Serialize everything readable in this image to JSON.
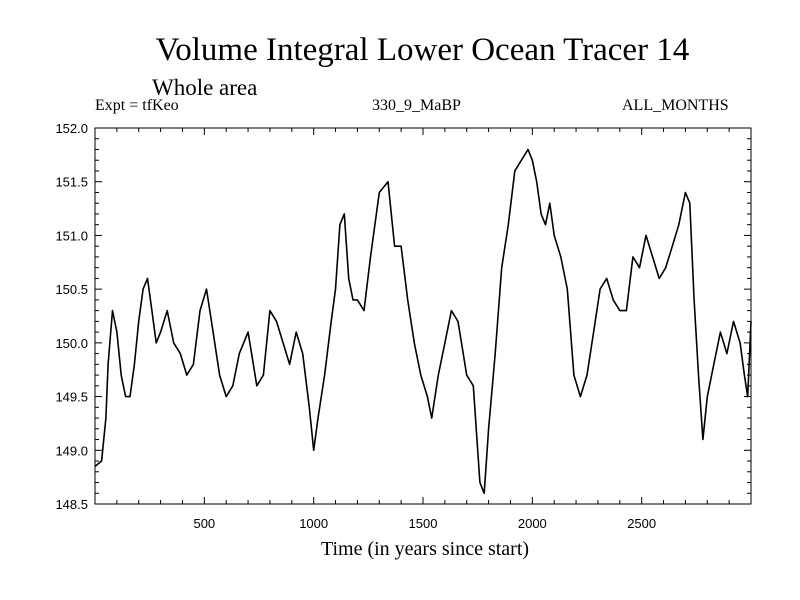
{
  "header": {
    "title": "Volume Integral Lower Ocean Tracer 14",
    "subtitle": "Whole area",
    "expt": "Expt = tfKeo",
    "run_id": "330_9_MaBP",
    "months": "ALL_MONTHS"
  },
  "chart_data": {
    "type": "line",
    "title": "Volume Integral Lower Ocean Tracer 14",
    "xlabel": "Time (in years since start)",
    "ylabel": "",
    "xlim": [
      0,
      3000
    ],
    "ylim": [
      148.5,
      152.0
    ],
    "x_ticks": [
      500,
      1000,
      1500,
      2000,
      2500
    ],
    "x_tick_labels": [
      "500",
      "1000",
      "1500",
      "2000",
      "2500"
    ],
    "y_ticks": [
      148.5,
      149.0,
      149.5,
      150.0,
      150.5,
      151.0,
      151.5,
      152.0
    ],
    "y_tick_labels": [
      "148.5",
      "149.0",
      "149.5",
      "150.0",
      "150.5",
      "151.0",
      "151.5",
      "152.0"
    ],
    "grid": false,
    "series": [
      {
        "x": [
          0,
          30,
          50,
          60,
          80,
          100,
          120,
          140,
          160,
          180,
          200,
          220,
          240,
          260,
          280,
          300,
          330,
          360,
          390,
          420,
          450,
          480,
          510,
          540,
          570,
          600,
          630,
          660,
          700,
          740,
          770,
          800,
          830,
          860,
          890,
          920,
          950,
          980,
          1000,
          1020,
          1050,
          1080,
          1100,
          1120,
          1140,
          1160,
          1180,
          1200,
          1230,
          1260,
          1300,
          1340,
          1370,
          1400,
          1430,
          1460,
          1490,
          1520,
          1540,
          1570,
          1600,
          1630,
          1660,
          1700,
          1730,
          1760,
          1780,
          1800,
          1830,
          1860,
          1890,
          1920,
          1950,
          1980,
          2000,
          2020,
          2040,
          2060,
          2080,
          2100,
          2130,
          2160,
          2190,
          2220,
          2250,
          2280,
          2310,
          2340,
          2370,
          2400,
          2430,
          2460,
          2490,
          2520,
          2550,
          2580,
          2610,
          2640,
          2670,
          2700,
          2720,
          2740,
          2760,
          2780,
          2800,
          2830,
          2860,
          2890,
          2920,
          2950,
          2970,
          2985,
          3000
        ],
        "y": [
          148.85,
          148.9,
          149.3,
          149.8,
          150.3,
          150.1,
          149.7,
          149.5,
          149.5,
          149.8,
          150.2,
          150.5,
          150.6,
          150.3,
          150.0,
          150.1,
          150.3,
          150.0,
          149.9,
          149.7,
          149.8,
          150.3,
          150.5,
          150.1,
          149.7,
          149.5,
          149.6,
          149.9,
          150.1,
          149.6,
          149.7,
          150.3,
          150.2,
          150.0,
          149.8,
          150.1,
          149.9,
          149.4,
          149.0,
          149.3,
          149.7,
          150.2,
          150.5,
          151.1,
          151.2,
          150.6,
          150.4,
          150.4,
          150.3,
          150.8,
          151.4,
          151.5,
          150.9,
          150.9,
          150.4,
          150.0,
          149.7,
          149.5,
          149.3,
          149.7,
          150.0,
          150.3,
          150.2,
          149.7,
          149.6,
          148.7,
          148.6,
          149.2,
          149.9,
          150.7,
          151.1,
          151.6,
          151.7,
          151.8,
          151.7,
          151.5,
          151.2,
          151.1,
          151.3,
          151.0,
          150.8,
          150.5,
          149.7,
          149.5,
          149.7,
          150.1,
          150.5,
          150.6,
          150.4,
          150.3,
          150.3,
          150.8,
          150.7,
          151.0,
          150.8,
          150.6,
          150.7,
          150.9,
          151.1,
          151.4,
          151.3,
          150.4,
          149.7,
          149.1,
          149.5,
          149.8,
          150.1,
          149.9,
          150.2,
          150.0,
          149.7,
          149.5,
          150.2
        ]
      }
    ]
  }
}
